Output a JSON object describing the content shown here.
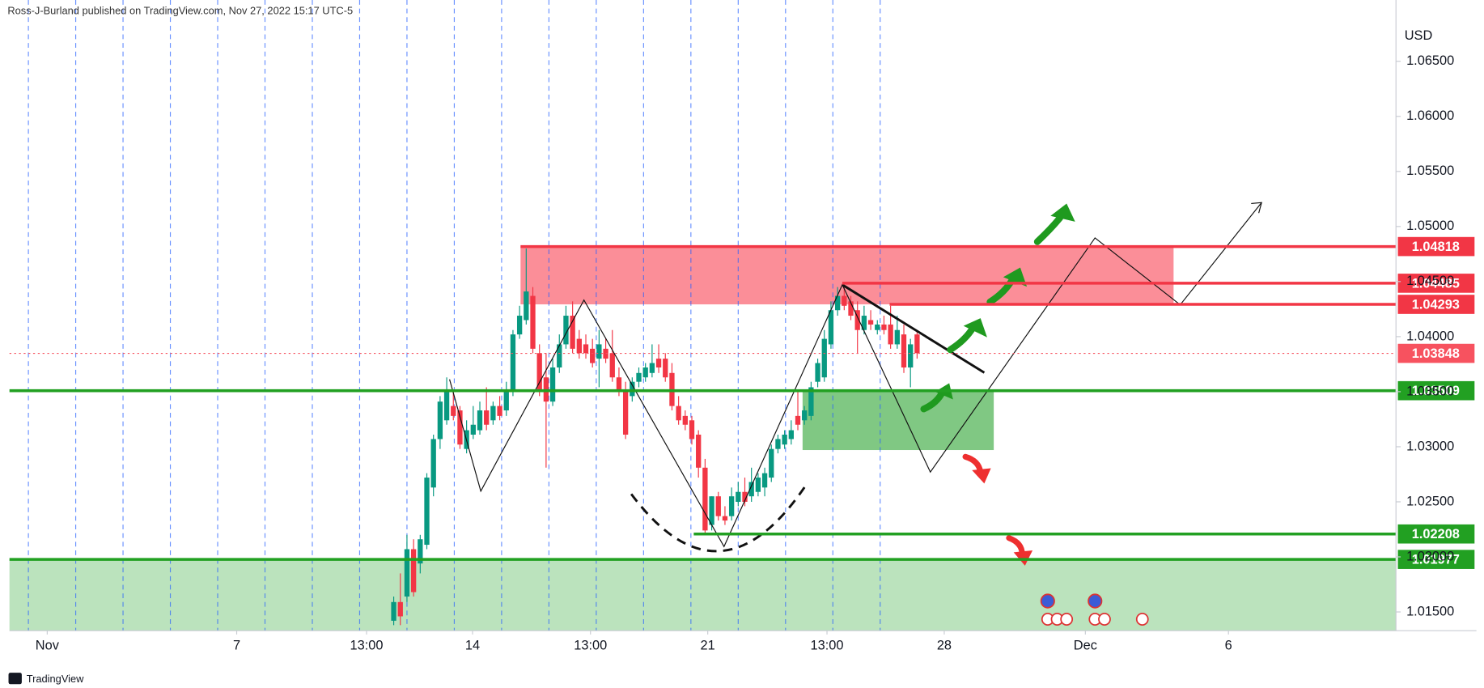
{
  "header": "Ross-J-Burland published on TradingView.com, Nov 27, 2022 15:17 UTC-5",
  "footer": "TradingView",
  "chart_data": {
    "type": "candlestick",
    "y_label": "USD",
    "colors": {
      "up": "#089981",
      "down": "#f23645"
    },
    "xlim": [
      0,
      209
    ],
    "ylim": [
      1.0133,
      1.0697
    ],
    "xticks": [
      {
        "value": 5.7,
        "label": "Nov"
      },
      {
        "value": 34.3,
        "label": "7"
      },
      {
        "value": 53.9,
        "label": "13:00"
      },
      {
        "value": 69.9,
        "label": "14"
      },
      {
        "value": 87.7,
        "label": "13:00"
      },
      {
        "value": 105.4,
        "label": "21"
      },
      {
        "value": 123.4,
        "label": "13:00"
      },
      {
        "value": 141.1,
        "label": "28"
      },
      {
        "value": 162.4,
        "label": "Dec"
      },
      {
        "value": 184,
        "label": "6"
      }
    ],
    "yticks": [
      {
        "value": 1.015,
        "label": "1.01500"
      },
      {
        "value": 1.02,
        "label": "1.02000"
      },
      {
        "value": 1.025,
        "label": "1.02500"
      },
      {
        "value": 1.03,
        "label": "1.03000"
      },
      {
        "value": 1.035,
        "label": "1.03500"
      },
      {
        "value": 1.04,
        "label": "1.04000"
      },
      {
        "value": 1.045,
        "label": "1.04500"
      },
      {
        "value": 1.05,
        "label": "1.05000"
      },
      {
        "value": 1.055,
        "label": "1.05500"
      },
      {
        "value": 1.06,
        "label": "1.06000"
      },
      {
        "value": 1.065,
        "label": "1.06500"
      }
    ],
    "x": [
      58,
      59,
      60,
      61,
      62,
      63,
      64,
      65,
      66,
      67,
      68,
      69,
      70,
      71,
      72,
      73,
      74,
      75,
      76,
      77,
      78,
      79,
      80,
      81,
      82,
      83,
      84,
      85,
      86,
      87,
      88,
      89,
      90,
      91,
      92,
      93,
      94,
      95,
      96,
      97,
      98,
      99,
      100,
      101,
      102,
      103,
      104,
      105,
      106,
      107,
      108,
      109,
      110,
      111,
      112,
      113,
      114,
      115,
      116,
      117,
      118,
      119,
      120,
      121,
      122,
      123,
      124,
      125,
      126,
      127,
      128,
      129,
      130,
      131,
      132,
      133,
      134,
      135,
      136,
      137
    ],
    "open": [
      1.0142,
      1.0159,
      1.0164,
      1.0207,
      1.0194,
      1.0211,
      1.0263,
      1.0307,
      1.0324,
      1.0337,
      1.0333,
      1.0298,
      1.0311,
      1.0315,
      1.0333,
      1.0324,
      1.0337,
      1.0333,
      1.035,
      1.0402,
      1.0415,
      1.0437,
      1.0385,
      1.0363,
      1.0341,
      1.0372,
      1.0393,
      1.0419,
      1.0398,
      1.0393,
      1.0389,
      1.038,
      1.0389,
      1.0385,
      1.0363,
      1.035,
      1.0346,
      1.0359,
      1.0363,
      1.0367,
      1.038,
      1.038,
      1.0367,
      1.0337,
      1.0328,
      1.0324,
      1.0311,
      1.0281,
      1.0229,
      1.0255,
      1.0237,
      1.0237,
      1.025,
      1.0259,
      1.0255,
      1.0259,
      1.0263,
      1.0272,
      1.0298,
      1.0302,
      1.0307,
      1.0328,
      1.0324,
      1.0328,
      1.0359,
      1.0363,
      1.0393,
      1.0424,
      1.0437,
      1.0432,
      1.0424,
      1.0406,
      1.0415,
      1.0406,
      1.0411,
      1.0411,
      1.0393,
      1.0402,
      1.0372,
      1.0402
    ],
    "high": [
      1.0164,
      1.0185,
      1.022,
      1.0216,
      1.022,
      1.0276,
      1.0311,
      1.0346,
      1.0363,
      1.035,
      1.0337,
      1.0324,
      1.0337,
      1.0341,
      1.0354,
      1.0341,
      1.0346,
      1.0359,
      1.0406,
      1.0428,
      1.048,
      1.0445,
      1.0393,
      1.0385,
      1.038,
      1.0402,
      1.0428,
      1.0432,
      1.0406,
      1.0402,
      1.0398,
      1.0406,
      1.0398,
      1.0406,
      1.0372,
      1.0359,
      1.0363,
      1.0372,
      1.0376,
      1.0393,
      1.0393,
      1.0385,
      1.0376,
      1.0346,
      1.0333,
      1.0328,
      1.0315,
      1.0289,
      1.0255,
      1.0259,
      1.0246,
      1.0263,
      1.0268,
      1.0272,
      1.0281,
      1.0276,
      1.0281,
      1.0302,
      1.0311,
      1.0315,
      1.0324,
      1.035,
      1.0337,
      1.0359,
      1.038,
      1.0406,
      1.0432,
      1.0445,
      1.0445,
      1.0437,
      1.0432,
      1.0428,
      1.0424,
      1.0415,
      1.0419,
      1.0428,
      1.0419,
      1.0411,
      1.0398,
      1.0406
    ],
    "low": [
      1.0138,
      1.0138,
      1.0159,
      1.0164,
      1.0185,
      1.0207,
      1.0255,
      1.0298,
      1.032,
      1.0324,
      1.0298,
      1.0294,
      1.0307,
      1.0311,
      1.0315,
      1.032,
      1.0324,
      1.0328,
      1.0346,
      1.0398,
      1.0411,
      1.0385,
      1.0346,
      1.0281,
      1.0337,
      1.0367,
      1.0389,
      1.0385,
      1.038,
      1.038,
      1.0372,
      1.0354,
      1.0376,
      1.0359,
      1.0346,
      1.0307,
      1.0341,
      1.0354,
      1.0359,
      1.0363,
      1.0367,
      1.0359,
      1.0333,
      1.032,
      1.0315,
      1.0302,
      1.0272,
      1.022,
      1.0224,
      1.0233,
      1.0229,
      1.0233,
      1.0246,
      1.0246,
      1.025,
      1.0255,
      1.0255,
      1.0268,
      1.0294,
      1.0298,
      1.0302,
      1.0315,
      1.032,
      1.0324,
      1.0354,
      1.0359,
      1.0389,
      1.0419,
      1.0424,
      1.0415,
      1.0385,
      1.0402,
      1.0406,
      1.0402,
      1.0402,
      1.0389,
      1.0389,
      1.0367,
      1.0354,
      1.038
    ],
    "close": [
      1.0159,
      1.0146,
      1.0207,
      1.0168,
      1.0216,
      1.0272,
      1.0307,
      1.0341,
      1.035,
      1.0328,
      1.0302,
      1.0315,
      1.032,
      1.0333,
      1.032,
      1.0337,
      1.0328,
      1.035,
      1.0402,
      1.0419,
      1.0441,
      1.0389,
      1.035,
      1.0341,
      1.0372,
      1.0393,
      1.0419,
      1.0389,
      1.0385,
      1.0385,
      1.0376,
      1.0393,
      1.038,
      1.0363,
      1.035,
      1.0311,
      1.0359,
      1.0367,
      1.0372,
      1.0376,
      1.0372,
      1.0363,
      1.0337,
      1.0324,
      1.032,
      1.0307,
      1.0281,
      1.0224,
      1.0255,
      1.0237,
      1.0233,
      1.0255,
      1.0259,
      1.025,
      1.0268,
      1.0272,
      1.0276,
      1.0298,
      1.0307,
      1.0311,
      1.0315,
      1.032,
      1.0333,
      1.0354,
      1.0376,
      1.0398,
      1.0424,
      1.0437,
      1.0428,
      1.0419,
      1.0406,
      1.0419,
      1.0411,
      1.0411,
      1.0406,
      1.0393,
      1.0406,
      1.0372,
      1.0393,
      1.0385
    ],
    "zones": [
      {
        "from": 1.04818,
        "to": 1.04293,
        "color": "#fb8e98"
      },
      {
        "from": 1.03509,
        "to": 1.0297,
        "color": "#80c883"
      },
      {
        "from": 1.01977,
        "to": 1.0133,
        "color": "#bbe3bd"
      }
    ],
    "levels": [
      {
        "value": 1.04818,
        "color": "#f23645",
        "style": "solid"
      },
      {
        "value": 1.04485,
        "color": "#f23645",
        "style": "solid"
      },
      {
        "value": 1.04293,
        "color": "#f23645",
        "style": "solid"
      },
      {
        "value": 1.03848,
        "color": "#f7525f",
        "style": "dotted"
      },
      {
        "value": 1.03509,
        "color": "#22a022",
        "style": "solid"
      },
      {
        "value": 1.02208,
        "color": "#22a022",
        "style": "solid"
      },
      {
        "value": 1.01977,
        "color": "#22a022",
        "style": "solid"
      }
    ]
  }
}
